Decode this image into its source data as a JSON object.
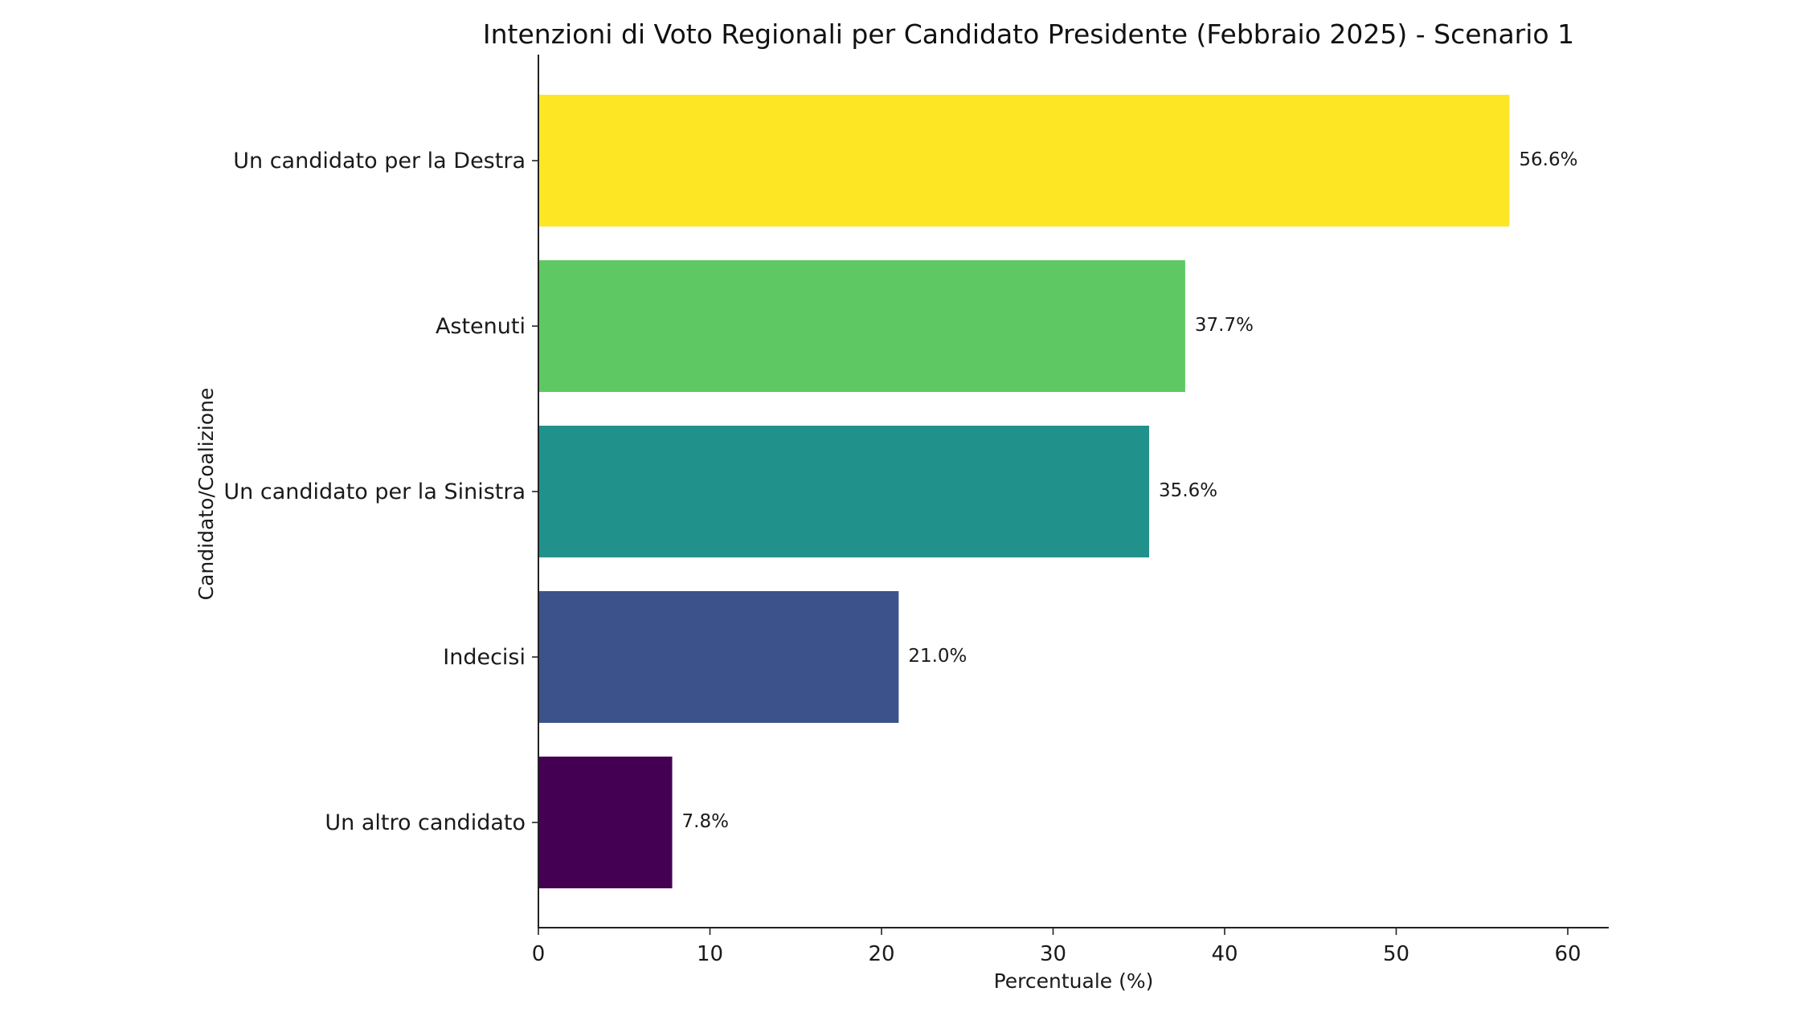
{
  "chart_data": {
    "type": "bar",
    "orientation": "horizontal",
    "title": "Intenzioni di Voto Regionali per Candidato Presidente (Febbraio 2025) - Scenario 1",
    "xlabel": "Percentuale (%)",
    "ylabel": "Candidato/Coalizione",
    "xlim": [
      0,
      62.3
    ],
    "xticks": [
      0,
      10,
      20,
      30,
      40,
      50,
      60
    ],
    "grid": false,
    "categories": [
      "Un candidato per la Destra",
      "Astenuti",
      "Un candidato per la Sinistra",
      "Indecisi",
      "Un altro candidato"
    ],
    "values": [
      56.6,
      37.7,
      35.6,
      21.0,
      7.8
    ],
    "value_labels": [
      "56.6%",
      "37.7%",
      "35.6%",
      "21.0%",
      "7.8%"
    ],
    "colors": [
      "#fde725",
      "#5ec962",
      "#21918c",
      "#3b528b",
      "#440154"
    ]
  }
}
